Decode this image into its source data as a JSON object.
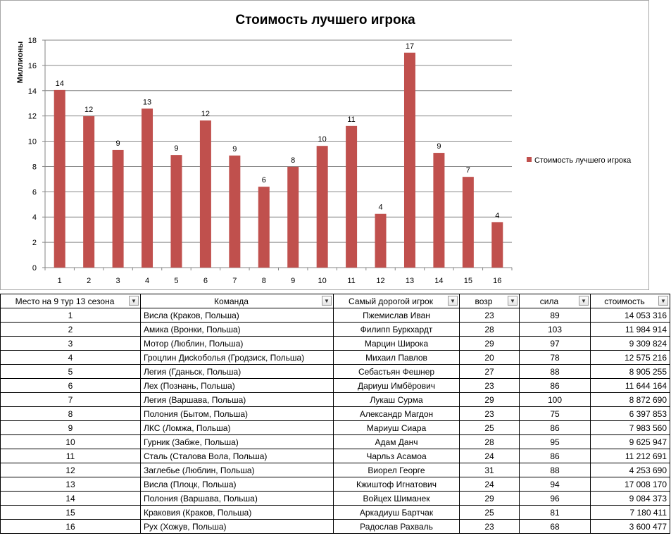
{
  "colors": {
    "bar": "#c0504d",
    "grid": "#868686",
    "axis": "#868686"
  },
  "chart_data": {
    "type": "bar",
    "title": "Стоимость лучшего игрока",
    "ylabel": "Миллионы",
    "xlabel": "",
    "ylim": [
      0,
      18
    ],
    "yticks": [
      0,
      2,
      4,
      6,
      8,
      10,
      12,
      14,
      16,
      18
    ],
    "grid": true,
    "legend_position": "right",
    "categories": [
      "1",
      "2",
      "3",
      "4",
      "5",
      "6",
      "7",
      "8",
      "9",
      "10",
      "11",
      "12",
      "13",
      "14",
      "15",
      "16"
    ],
    "series": [
      {
        "name": "Стоимость лучшего игрока",
        "values": [
          14.05,
          11.98,
          9.31,
          12.58,
          8.91,
          11.64,
          8.87,
          6.4,
          7.98,
          9.63,
          11.21,
          4.25,
          17.01,
          9.08,
          7.18,
          3.6
        ],
        "labels": [
          "14",
          "12",
          "9",
          "13",
          "9",
          "12",
          "9",
          "6",
          "8",
          "10",
          "11",
          "4",
          "17",
          "9",
          "7",
          "4"
        ]
      }
    ]
  },
  "table": {
    "headers": [
      "Место на 9 тур 13 сезона",
      "Команда",
      "Самый дорогой игрок",
      "возр",
      "сила",
      "стоимость"
    ],
    "rows": [
      [
        "1",
        "Висла (Краков, Польша)",
        "Пжемислав Иван",
        "23",
        "89",
        "14 053 316"
      ],
      [
        "2",
        "Амика (Вронки, Польша)",
        "Филипп Буркхардт",
        "28",
        "103",
        "11 984 914"
      ],
      [
        "3",
        "Мотор (Люблин, Польша)",
        "Марцин Широка",
        "29",
        "97",
        "9 309 824"
      ],
      [
        "4",
        "Гроцлин Дисkоболья (Гродзиск, Польша)",
        "Михаил Павлов",
        "20",
        "78",
        "12 575 216"
      ],
      [
        "5",
        "Легия (Гданьск, Польша)",
        "Себастьян Фешнер",
        "27",
        "88",
        "8 905 255"
      ],
      [
        "6",
        "Лех (Познань, Польша)",
        "Дариуш Имбёрович",
        "23",
        "86",
        "11 644 164"
      ],
      [
        "7",
        "Легия (Варшава, Польша)",
        "Лукаш Сурма",
        "29",
        "100",
        "8 872 690"
      ],
      [
        "8",
        "Полония (Бытом, Польша)",
        "Александр Магдон",
        "23",
        "75",
        "6 397 853"
      ],
      [
        "9",
        "ЛКС (Ломжа, Польша)",
        "Мариуш Сиара",
        "25",
        "86",
        "7 983 560"
      ],
      [
        "10",
        "Гурник (Забже, Польша)",
        "Адам Данч",
        "28",
        "95",
        "9 625 947"
      ],
      [
        "11",
        "Сталь (Сталова Вола, Польша)",
        "Чарльз Асамоа",
        "24",
        "86",
        "11 212 691"
      ],
      [
        "12",
        "Заглебье (Люблин, Польша)",
        "Виорел Георге",
        "31",
        "88",
        "4 253 690"
      ],
      [
        "13",
        "Висла (Плоцк, Польша)",
        "Кжиштоф Игнатович",
        "24",
        "94",
        "17 008 170"
      ],
      [
        "14",
        "Полония (Варшава, Польша)",
        "Войцех Шиманек",
        "29",
        "96",
        "9 084 373"
      ],
      [
        "15",
        "Краковия (Краков, Польша)",
        "Аркадиуш Бартчак",
        "25",
        "81",
        "7 180 411"
      ],
      [
        "16",
        "Рух (Хожув, Польша)",
        "Радослав Рахваль",
        "23",
        "68",
        "3 600 477"
      ]
    ]
  }
}
